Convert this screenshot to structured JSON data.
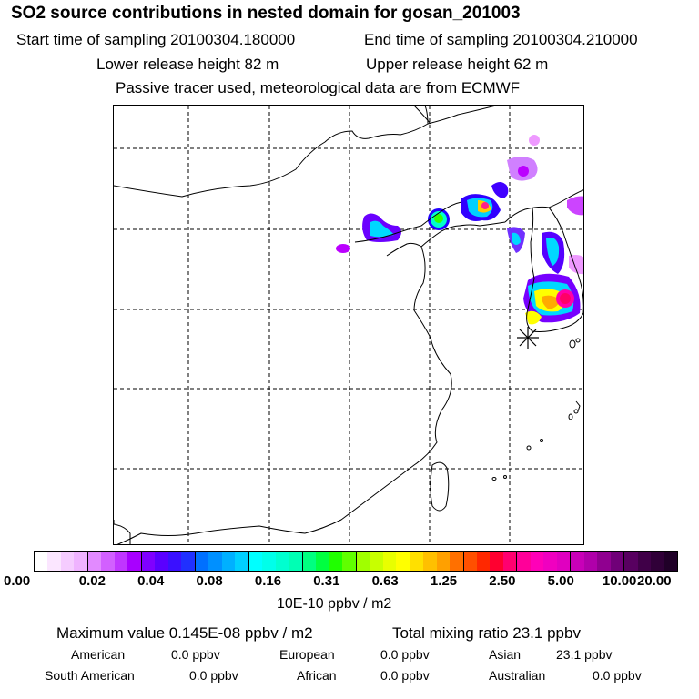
{
  "header": {
    "title": "SO2 source contributions in nested domain for gosan_201003",
    "start_time": "Start time of sampling 20100304.180000",
    "end_time": "End time of sampling 20100304.210000",
    "lower_height": "Lower release height   82 m",
    "upper_height": "Upper release height   62 m",
    "tracer_note": "Passive tracer used, meteorological data are from ECMWF"
  },
  "map": {
    "receptor": "gosan",
    "plume_colors": [
      "#ff00cc",
      "#ff4488",
      "#ffff00",
      "#00ffcc",
      "#00d8ff",
      "#5500ff",
      "#bb00ff",
      "#ee99ff"
    ]
  },
  "colorbar": {
    "unit": "10E-10 ppbv / m2",
    "tick_labels": [
      "0.00",
      "0.02",
      "0.04",
      "0.08",
      "0.16",
      "0.31",
      "0.63",
      "1.25",
      "2.50",
      "5.00",
      "10.00",
      "20.00"
    ],
    "colors": [
      "#ffffff",
      "#fbe6ff",
      "#f5ccff",
      "#efb3ff",
      "#e28aff",
      "#d260ff",
      "#c036ff",
      "#a800ff",
      "#7f00ff",
      "#5a00ff",
      "#3a10ff",
      "#2030ff",
      "#0070ff",
      "#0090ff",
      "#00b0ff",
      "#00d0ff",
      "#00ffff",
      "#00ffea",
      "#00ffd0",
      "#00ffb4",
      "#00ff80",
      "#00ff40",
      "#20ff00",
      "#60ff00",
      "#a0ff00",
      "#c8ff00",
      "#e8ff00",
      "#ffff00",
      "#ffe000",
      "#ffc000",
      "#ffa000",
      "#ff7000",
      "#ff5000",
      "#ff2800",
      "#ff0030",
      "#ff0070",
      "#ff0099",
      "#ff00b8",
      "#f000c0",
      "#e000c0",
      "#c800b8",
      "#b000aa",
      "#900090",
      "#700078",
      "#580060",
      "#400048",
      "#300038",
      "#200028"
    ]
  },
  "summary": {
    "max_value": "Maximum value  0.145E-08 ppbv / m2",
    "total_mixing": "Total mixing ratio       23.1 ppbv",
    "regions": {
      "american_label": "American",
      "american_value": "0.0 ppbv",
      "european_label": "European",
      "european_value": "0.0 ppbv",
      "asian_label": "Asian",
      "asian_value": "23.1 ppbv",
      "south_american_label": "South American",
      "south_american_value": "0.0 ppbv",
      "african_label": "African",
      "african_value": "0.0 ppbv",
      "australian_label": "Australian",
      "australian_value": "0.0 ppbv"
    }
  }
}
